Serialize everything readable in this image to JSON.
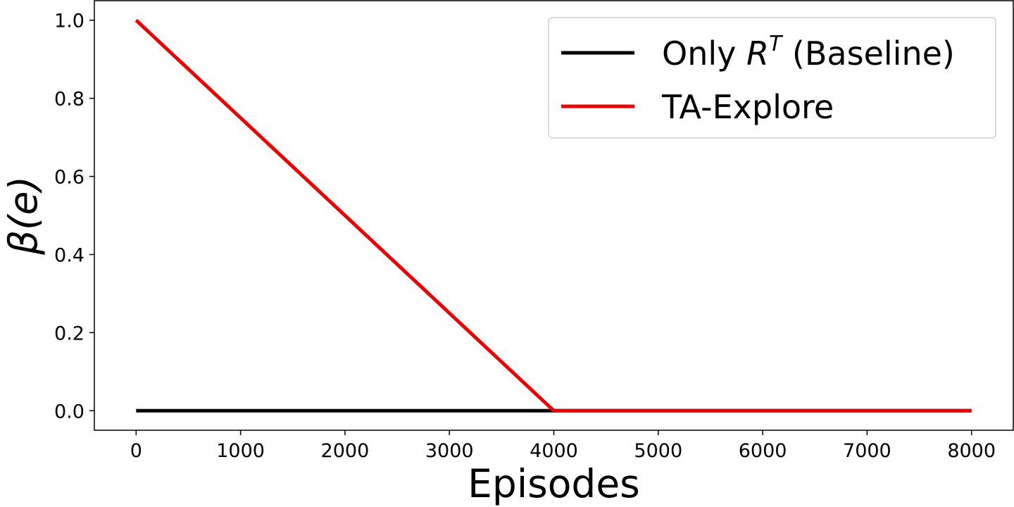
{
  "chart_data": {
    "type": "line",
    "xlabel": "Episodes",
    "ylabel": "β(e)",
    "xlim": [
      -400,
      8400
    ],
    "ylim": [
      -0.05,
      1.05
    ],
    "xticks": [
      0,
      1000,
      2000,
      3000,
      4000,
      5000,
      6000,
      7000,
      8000
    ],
    "yticks": [
      0.0,
      0.2,
      0.4,
      0.6,
      0.8,
      1.0
    ],
    "xtick_labels": [
      "0",
      "1000",
      "2000",
      "3000",
      "4000",
      "5000",
      "6000",
      "7000",
      "8000"
    ],
    "ytick_labels": [
      "0.0",
      "0.2",
      "0.4",
      "0.6",
      "0.8",
      "1.0"
    ],
    "grid": false,
    "legend_position": "top-right",
    "series": [
      {
        "name": "Only R^T (Baseline)",
        "legend_prefix": "Only ",
        "legend_symbol": "R",
        "legend_superscript": "T",
        "legend_suffix": " (Baseline)",
        "color": "#000000",
        "x": [
          0,
          8000
        ],
        "y": [
          0.0,
          0.0
        ]
      },
      {
        "name": "TA-Explore",
        "color": "#ee0000",
        "x": [
          0,
          4000,
          8000
        ],
        "y": [
          1.0,
          0.0,
          0.0
        ]
      }
    ]
  }
}
